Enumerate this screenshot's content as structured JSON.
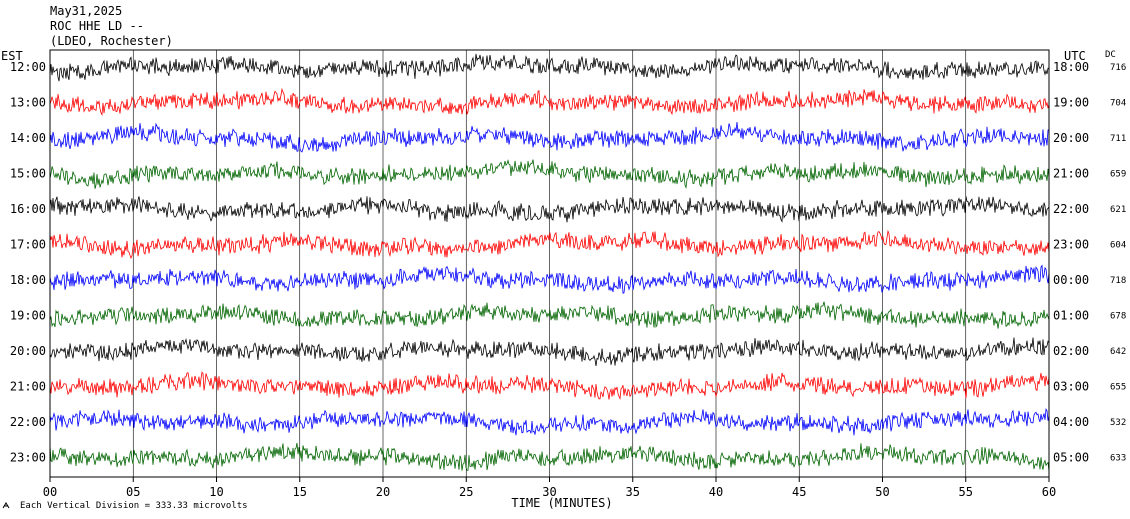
{
  "header": {
    "date": "May31,2025",
    "station": "ROC HHE LD --",
    "network": "(LDEO, Rochester)"
  },
  "chart_data": {
    "type": "line",
    "left_axis_title": "EST",
    "right_axis_title": "UTC",
    "dc_title": "DC",
    "rows": [
      {
        "est": "12:00",
        "utc": "18:00",
        "dc": "716",
        "color": "#000000"
      },
      {
        "est": "13:00",
        "utc": "19:00",
        "dc": "704",
        "color": "#ff0000"
      },
      {
        "est": "14:00",
        "utc": "20:00",
        "dc": "711",
        "color": "#0000ff"
      },
      {
        "est": "15:00",
        "utc": "21:00",
        "dc": "659",
        "color": "#006400"
      },
      {
        "est": "16:00",
        "utc": "22:00",
        "dc": "621",
        "color": "#000000"
      },
      {
        "est": "17:00",
        "utc": "23:00",
        "dc": "604",
        "color": "#ff0000"
      },
      {
        "est": "18:00",
        "utc": "00:00",
        "dc": "718",
        "color": "#0000ff"
      },
      {
        "est": "19:00",
        "utc": "01:00",
        "dc": "678",
        "color": "#006400"
      },
      {
        "est": "20:00",
        "utc": "02:00",
        "dc": "642",
        "color": "#000000"
      },
      {
        "est": "21:00",
        "utc": "03:00",
        "dc": "655",
        "color": "#ff0000"
      },
      {
        "est": "22:00",
        "utc": "04:00",
        "dc": "532",
        "color": "#0000ff"
      },
      {
        "est": "23:00",
        "utc": "05:00",
        "dc": "633",
        "color": "#006400"
      }
    ],
    "x_ticks": [
      "00",
      "05",
      "10",
      "15",
      "20",
      "25",
      "30",
      "35",
      "40",
      "45",
      "50",
      "55",
      "60"
    ],
    "xlim": [
      0,
      60
    ],
    "xlabel": "TIME (MINUTES)",
    "footer": "Each Vertical Division =  333.33 microvolts",
    "grid": "vertical lines every 5 minutes"
  }
}
